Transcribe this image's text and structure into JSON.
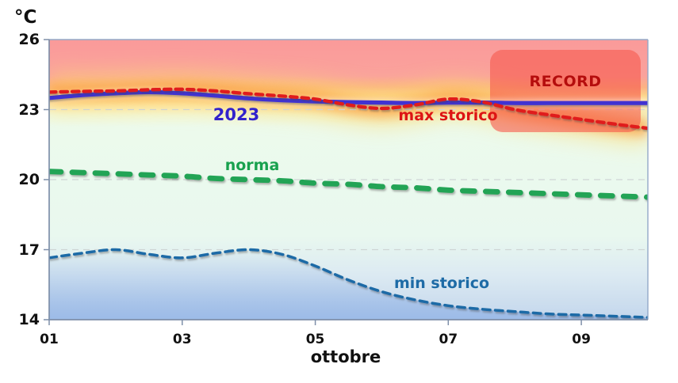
{
  "unit_label": "°C",
  "record_box": {
    "label": "RECORD",
    "fill": "rgba(246,88,76,0.60)",
    "text_color": "#b50d0d"
  },
  "axes": {
    "y": {
      "unit": "°C",
      "min": 14,
      "max": 26,
      "ticks": [
        {
          "label": "26",
          "value": 26
        },
        {
          "label": "23",
          "value": 23
        },
        {
          "label": "20",
          "value": 20
        },
        {
          "label": "17",
          "value": 17
        },
        {
          "label": "14",
          "value": 14
        }
      ]
    },
    "x": {
      "label": "ottobre",
      "min": 1,
      "max": 10,
      "ticks": [
        {
          "label": "01",
          "value": 1
        },
        {
          "label": "03",
          "value": 3
        },
        {
          "label": "05",
          "value": 5
        },
        {
          "label": "07",
          "value": 7
        },
        {
          "label": "09",
          "value": 9
        }
      ]
    }
  },
  "chart_data": {
    "type": "line",
    "title": "",
    "xlabel": "ottobre",
    "ylabel": "°C",
    "xlim": [
      1,
      10
    ],
    "ylim": [
      14,
      26
    ],
    "grid": "horizontal-dashed",
    "gridlines": [
      23,
      20,
      17
    ],
    "x": [
      1,
      1.5,
      2,
      2.5,
      3,
      3.5,
      4,
      4.5,
      5,
      5.5,
      6,
      6.5,
      7,
      7.5,
      8,
      8.5,
      9,
      9.5,
      10
    ],
    "series": [
      {
        "id": "max",
        "name": "max storico",
        "color": "#e01c1c",
        "label_color": "#dd1414",
        "style": "dashed",
        "width": 4.3,
        "values": [
          23.75,
          23.78,
          23.8,
          23.85,
          23.87,
          23.8,
          23.68,
          23.58,
          23.45,
          23.2,
          23.05,
          23.2,
          23.45,
          23.33,
          23.0,
          22.78,
          22.58,
          22.38,
          22.2
        ]
      },
      {
        "id": "y2023",
        "name": "2023",
        "color": "#4130d2",
        "label_color": "#3222cc",
        "style": "solid",
        "width": 5.2,
        "values": [
          23.5,
          23.62,
          23.7,
          23.75,
          23.7,
          23.6,
          23.48,
          23.4,
          23.35,
          23.32,
          23.3,
          23.28,
          23.3,
          23.3,
          23.28,
          23.28,
          23.28,
          23.28,
          23.28
        ]
      },
      {
        "id": "norma",
        "name": "norma",
        "color": "#22a455",
        "label_color": "#18a14e",
        "style": "dashed-long",
        "width": 6.8,
        "values": [
          20.35,
          20.3,
          20.25,
          20.2,
          20.15,
          20.05,
          20.0,
          19.95,
          19.85,
          19.8,
          19.7,
          19.65,
          19.55,
          19.5,
          19.45,
          19.4,
          19.35,
          19.3,
          19.25
        ]
      },
      {
        "id": "min",
        "name": "min storico",
        "color": "#1d6ba6",
        "label_color": "#1d6ba6",
        "style": "dashed",
        "width": 3.5,
        "values": [
          16.65,
          16.85,
          17.0,
          16.8,
          16.65,
          16.85,
          17.0,
          16.8,
          16.3,
          15.7,
          15.2,
          14.85,
          14.6,
          14.45,
          14.35,
          14.25,
          14.2,
          14.15,
          14.1
        ]
      }
    ],
    "annotations": [
      {
        "text": "2023",
        "x": 3.8,
        "y": 22.8
      },
      {
        "text": "max storico",
        "x": 7.0,
        "y": 22.6
      },
      {
        "text": "norma",
        "x": 4.0,
        "y": 20.8
      },
      {
        "text": "min storico",
        "x": 6.9,
        "y": 15.5
      },
      {
        "text": "RECORD",
        "x": 8.8,
        "y": 24.3
      }
    ]
  },
  "background_gradient": [
    "#fa9a9a",
    "#fbb284",
    "#fcd48b",
    "#fdeab2",
    "#ecfaec",
    "#dceaf2",
    "#c3d6ec"
  ]
}
